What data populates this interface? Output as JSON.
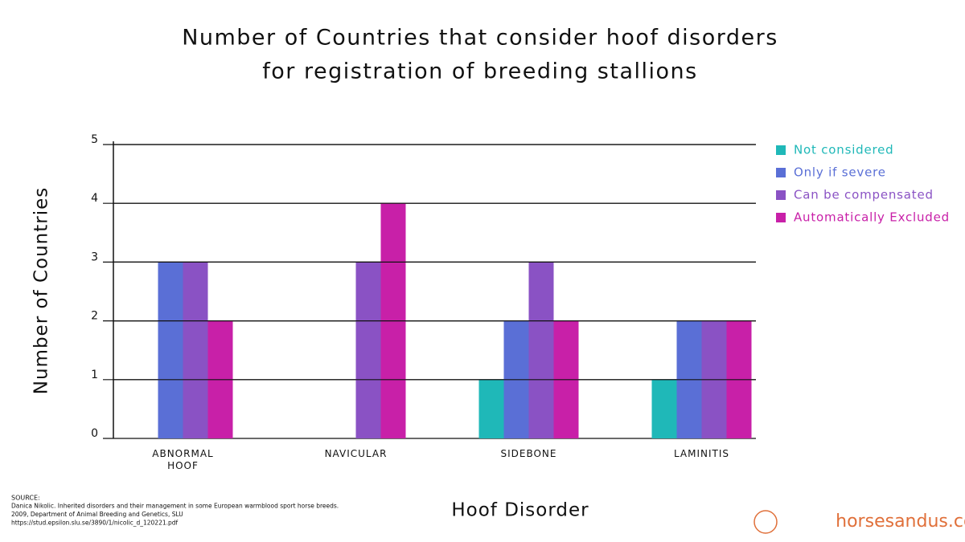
{
  "chart_data": {
    "type": "bar",
    "title": "Number of Countries that consider hoof disorders",
    "subtitle": "for registration of breeding stallions",
    "x_label": "Hoof Disorder",
    "y_label": "Number of Countries",
    "categories": [
      "ABNORMAL HOOF",
      "NAVICULAR",
      "SIDEBONE",
      "LAMINITIS"
    ],
    "series": [
      {
        "name": "Not considered",
        "color": "#1fb8b8",
        "values": [
          0,
          0,
          1,
          1
        ]
      },
      {
        "name": "Only if severe",
        "color": "#5a6fd6",
        "values": [
          3,
          0,
          2,
          2
        ]
      },
      {
        "name": "Can be compensated",
        "color": "#8a52c4",
        "values": [
          3,
          3,
          3,
          2
        ]
      },
      {
        "name": "Automatically Excluded",
        "color": "#c820a8",
        "values": [
          2,
          4,
          2,
          2
        ]
      }
    ],
    "ylim": [
      0,
      5
    ],
    "yticks": [
      0,
      1,
      2,
      3,
      4,
      5
    ],
    "grid": true,
    "legend": "right",
    "source": [
      "SOURCE:",
      "Danica Nikolic. Inherited disorders and their management in some European warmblood sport horse breeds.",
      "2009, Department of Animal Breeding and Genetics, SLU",
      "https://stud.epsilon.slu.se/3890/1/nicolic_d_120221.pdf"
    ],
    "watermark": "horsesandus.com"
  }
}
